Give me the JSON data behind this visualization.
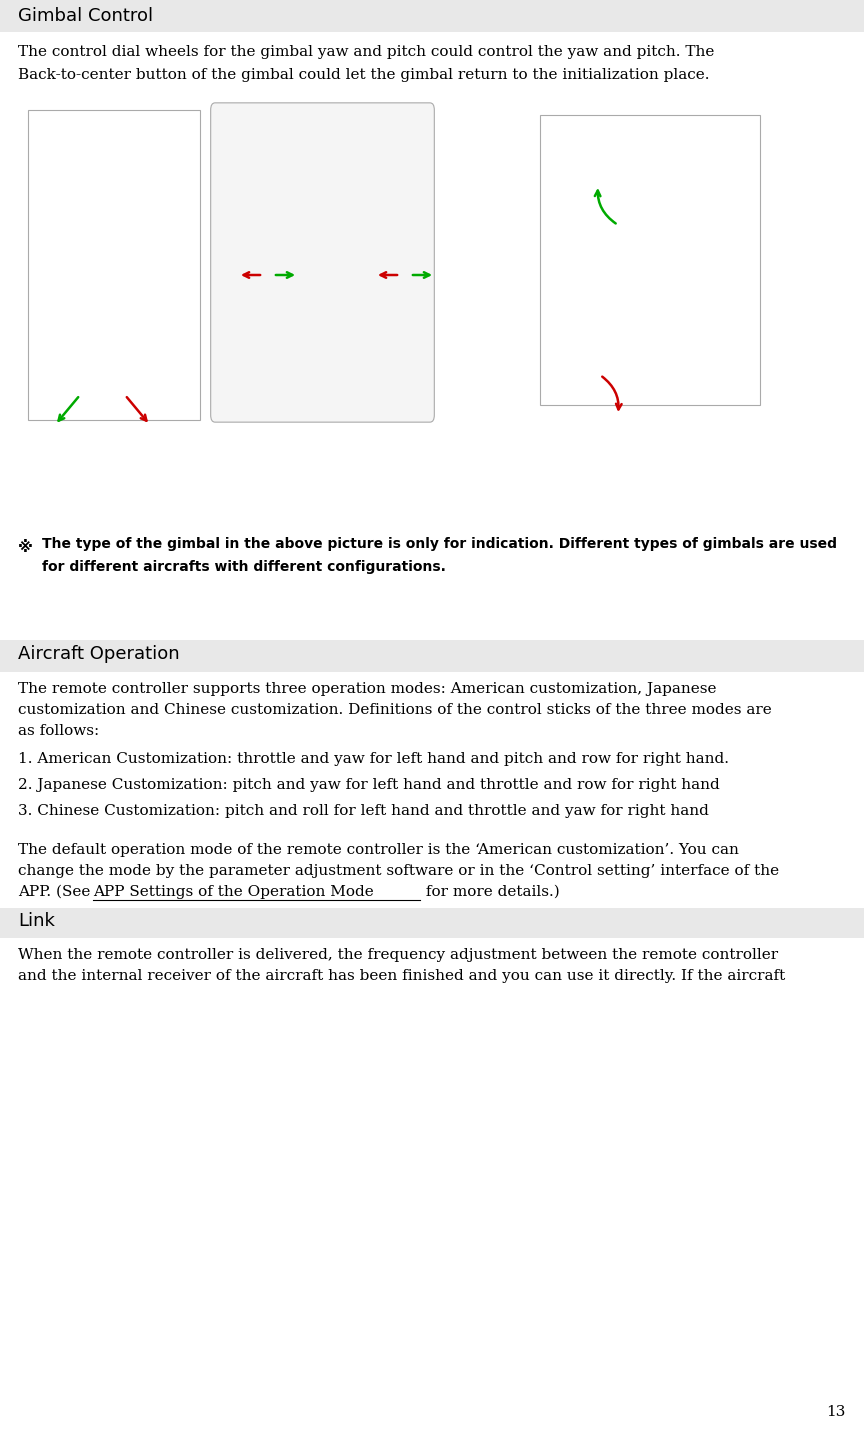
{
  "page_width": 8.64,
  "page_height": 14.29,
  "background_color": "#ffffff",
  "header_bg_color": "#e8e8e8",
  "page_number": "13",
  "section1_title": "Gimbal Control",
  "note_symbol": "※",
  "section2_title": "Aircraft Operation",
  "section2_item1": "1. American Customization: throttle and yaw for left hand and pitch and row for right hand.",
  "section2_item2": "2. Japanese Customization: pitch and yaw for left hand and throttle and row for right hand",
  "section2_item3": "3. Chinese Customization: pitch and roll for left hand and throttle and yaw for right hand",
  "section2_para2_line1": "The default operation mode of the remote controller is the ‘American customization’. You can",
  "section2_para2_line2": "change the mode by the parameter adjustment software or in the ‘Control setting’ interface of the",
  "section3_title": "Link",
  "section3_para1_line1": "When the remote controller is delivered, the frequency adjustment between the remote controller",
  "section3_para1_line2": "and the internal receiver of the aircraft has been finished and you can use it directly. If the aircraft",
  "header_font_size": 13,
  "body_font_size": 11,
  "note_font_size": 10
}
